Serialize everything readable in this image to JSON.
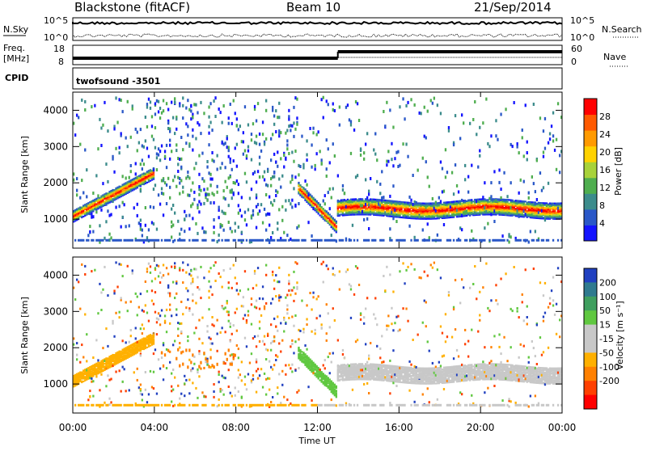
{
  "header": {
    "station": "Blackstone (fitACF)",
    "beam": "Beam 10",
    "date": "21/Sep/2014"
  },
  "top_panels": {
    "nsky_label": "N.Sky",
    "nsearch_label": "N.Search",
    "nsky_ticks": [
      "10^5",
      "10^0"
    ],
    "nsearch_ticks": [
      "10^5",
      "10^0"
    ],
    "freq_label_1": "Freq.",
    "freq_label_2": "[MHz]",
    "freq_ticks": [
      18,
      8
    ],
    "nave_label": "Nave",
    "nave_ticks": [
      60,
      0
    ],
    "cpid_label": "CPID",
    "cpid_text": "twofsound -3501"
  },
  "chart_data": [
    {
      "type": "heatmap",
      "name": "power",
      "ylabel": "Slant Range [km]",
      "xlabel": "Time UT",
      "x_ticks": [
        "00:00",
        "04:00",
        "08:00",
        "12:00",
        "16:00",
        "20:00",
        "00:00"
      ],
      "y_ticks": [
        1000,
        2000,
        3000,
        4000
      ],
      "ylim": [
        200,
        4500
      ],
      "colorbar": {
        "label": "Power [dB]",
        "ticks": [
          4,
          8,
          12,
          16,
          20,
          24,
          28
        ],
        "range": [
          0,
          32
        ],
        "colors": [
          "#1414ff",
          "#2a58c8",
          "#3c8c8c",
          "#4fae4f",
          "#a8d23a",
          "#ffd200",
          "#ff9a00",
          "#ff5a00",
          "#ff0000"
        ]
      },
      "features": [
        {
          "description_hidden": true,
          "start_hour": 0,
          "end_hour": 4,
          "start_range_km": 1100,
          "end_range_km": 2400
        },
        {
          "description_hidden": true,
          "start_hour": 11,
          "end_hour": 12.8,
          "start_range_km": 1900,
          "end_range_km": 750
        },
        {
          "description_hidden": true,
          "start_hour": 13,
          "end_hour": 24,
          "start_range_km": 1300,
          "end_range_km": 1350
        }
      ]
    },
    {
      "type": "heatmap",
      "name": "velocity",
      "ylabel": "Slant Range [km]",
      "xlabel": "Time UT",
      "x_ticks": [
        "00:00",
        "04:00",
        "08:00",
        "12:00",
        "16:00",
        "20:00",
        "00:00"
      ],
      "y_ticks": [
        1000,
        2000,
        3000,
        4000
      ],
      "ylim": [
        200,
        4500
      ],
      "colorbar": {
        "label": "Velocity [m s⁻¹]",
        "ticks": [
          200,
          100,
          50,
          15,
          -15,
          -50,
          -100,
          -200
        ],
        "colors": [
          "#2040c0",
          "#2f7a8f",
          "#3f9f5f",
          "#60c840",
          "#c8c8c8",
          "#c8c8c8",
          "#ffb000",
          "#ff8000",
          "#ff4000",
          "#ff0000"
        ]
      }
    }
  ],
  "xaxis_label": "Time UT"
}
